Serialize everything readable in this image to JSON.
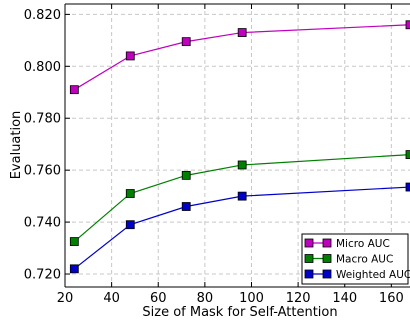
{
  "chart_data": {
    "type": "line",
    "title": "",
    "xlabel": "Size of Mask for Self-Attention",
    "ylabel": "Evaluation",
    "xlim": [
      20,
      168
    ],
    "ylim": [
      0.715,
      0.824
    ],
    "x_ticks": [
      20,
      40,
      60,
      80,
      100,
      120,
      140,
      160
    ],
    "y_ticks": [
      0.72,
      0.74,
      0.76,
      0.78,
      0.8,
      0.82
    ],
    "x_tick_labels": [
      "20",
      "40",
      "60",
      "80",
      "100",
      "120",
      "140",
      "160"
    ],
    "y_tick_labels": [
      "0.720",
      "0.740",
      "0.760",
      "0.780",
      "0.800",
      "0.820"
    ],
    "grid": true,
    "legend_position": "bottom-right",
    "x": [
      24,
      48,
      72,
      96,
      168
    ],
    "series": [
      {
        "name": "Micro AUC",
        "color": "#c000c0",
        "marker_color": "#bf00bf",
        "values": [
          0.791,
          0.804,
          0.8095,
          0.813,
          0.816
        ]
      },
      {
        "name": "Macro AUC",
        "color": "#008000",
        "marker_color": "#008000",
        "values": [
          0.7325,
          0.751,
          0.758,
          0.762,
          0.766
        ]
      },
      {
        "name": "Weighted AUC",
        "color": "#0000cc",
        "marker_color": "#0000cc",
        "values": [
          0.722,
          0.739,
          0.746,
          0.75,
          0.7535
        ]
      }
    ]
  }
}
